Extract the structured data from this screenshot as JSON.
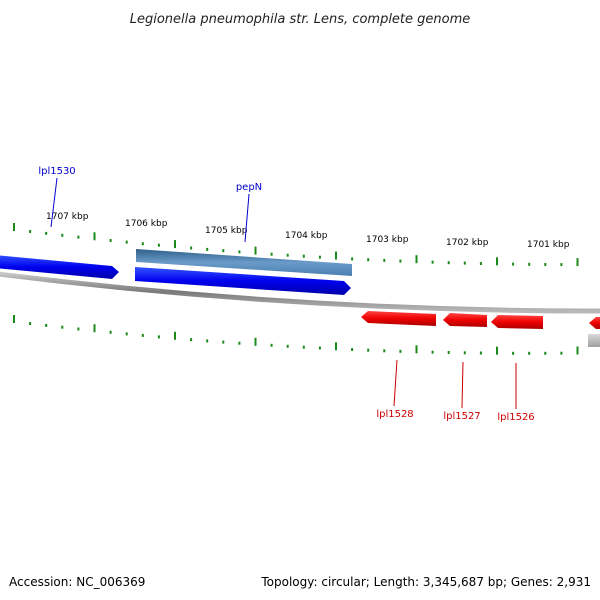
{
  "title": "Legionella pneumophila str. Lens, complete genome",
  "footer": {
    "accession": "Accession: NC_006369",
    "stats": "Topology: circular; Length: 3,345,687 bp; Genes: 2,931"
  },
  "colors": {
    "forward_cds": "#0000ee",
    "forward_gene": "#4a7fb0",
    "reverse_cds": "#ee0000",
    "reverse_gene": "#b0b0b0",
    "backbone": "#8a8a8a",
    "ticks": "#1a8a1a",
    "forward_label": "#0000cc",
    "reverse_label": "#cc0000"
  },
  "kbp_labels": [
    "1707 kbp",
    "1706 kbp",
    "1705 kbp",
    "1704 kbp",
    "1703 kbp",
    "1702 kbp",
    "1701 kbp"
  ],
  "features": {
    "forward_labels": [
      "lpl1530",
      "pepN"
    ],
    "reverse_labels": [
      "lpl1528",
      "lpl1527",
      "lpl1526"
    ]
  }
}
